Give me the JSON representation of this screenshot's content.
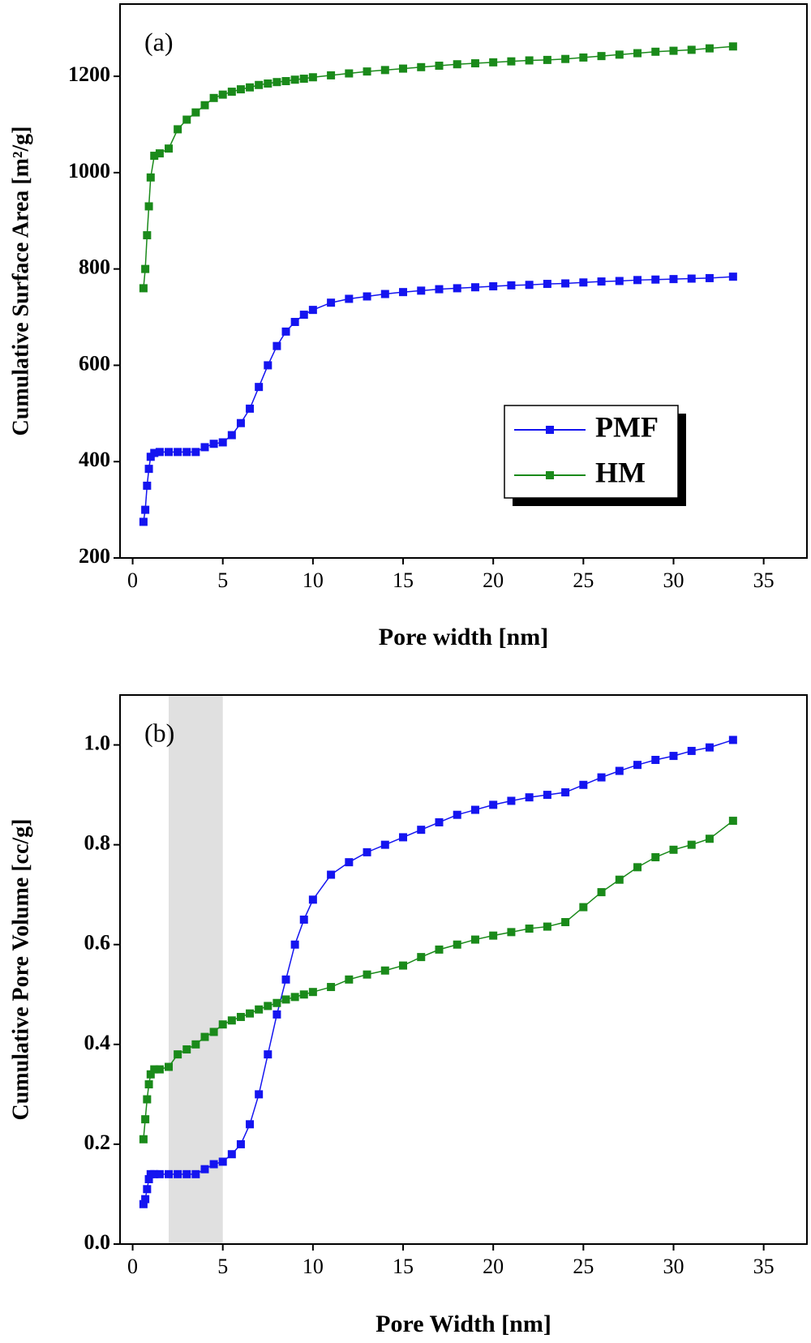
{
  "chart_data": [
    {
      "type": "line",
      "annotation": "(a)",
      "xlabel": "Pore width [nm]",
      "ylabel": "Cumulative Surface Area [m²/g]",
      "x": [
        0.6,
        0.7,
        0.8,
        0.9,
        1.0,
        1.2,
        1.5,
        2,
        2.5,
        3,
        3.5,
        4,
        4.5,
        5,
        5.5,
        6,
        6.5,
        7,
        7.5,
        8,
        8.5,
        9,
        9.5,
        10,
        11,
        12,
        13,
        14,
        15,
        16,
        17,
        18,
        19,
        20,
        21,
        22,
        23,
        24,
        25,
        26,
        27,
        28,
        29,
        30,
        31,
        32,
        33.3
      ],
      "series": [
        {
          "name": "PMF",
          "color": "#1414f0",
          "values": [
            275,
            300,
            350,
            385,
            410,
            418,
            420,
            420,
            420,
            420,
            420,
            430,
            437,
            440,
            455,
            480,
            510,
            555,
            600,
            640,
            670,
            690,
            705,
            715,
            730,
            738,
            743,
            748,
            752,
            755,
            758,
            760,
            762,
            764,
            766,
            767,
            769,
            770,
            772,
            774,
            775,
            777,
            778,
            779,
            780,
            781,
            784
          ]
        },
        {
          "name": "HM",
          "color": "#1a8a1a",
          "values": [
            760,
            800,
            870,
            930,
            990,
            1035,
            1040,
            1050,
            1090,
            1110,
            1125,
            1140,
            1155,
            1162,
            1168,
            1173,
            1177,
            1182,
            1185,
            1188,
            1190,
            1193,
            1195,
            1198,
            1202,
            1206,
            1210,
            1213,
            1216,
            1219,
            1222,
            1225,
            1227,
            1229,
            1231,
            1233,
            1234,
            1236,
            1239,
            1242,
            1245,
            1248,
            1251,
            1253,
            1255,
            1258,
            1262
          ]
        }
      ],
      "xlim": [
        -0.7,
        37.4
      ],
      "ylim": [
        200,
        1350
      ],
      "xticks": [
        0,
        5,
        10,
        15,
        20,
        25,
        30,
        35
      ],
      "yticks": [
        200,
        400,
        600,
        800,
        1000,
        1200
      ],
      "legend": "right"
    },
    {
      "type": "line",
      "annotation": "(b)",
      "xlabel": "Pore Width [nm]",
      "ylabel": "Cumulative Pore Volume [cc/g]",
      "x": [
        0.6,
        0.7,
        0.8,
        0.9,
        1.0,
        1.2,
        1.5,
        2,
        2.5,
        3,
        3.5,
        4,
        4.5,
        5,
        5.5,
        6,
        6.5,
        7,
        7.5,
        8,
        8.5,
        9,
        9.5,
        10,
        11,
        12,
        13,
        14,
        15,
        16,
        17,
        18,
        19,
        20,
        21,
        22,
        23,
        24,
        25,
        26,
        27,
        28,
        29,
        30,
        31,
        32,
        33.3
      ],
      "series": [
        {
          "name": "PMF",
          "color": "#1414f0",
          "values": [
            0.08,
            0.09,
            0.11,
            0.13,
            0.14,
            0.14,
            0.14,
            0.14,
            0.14,
            0.14,
            0.14,
            0.15,
            0.16,
            0.165,
            0.18,
            0.2,
            0.24,
            0.3,
            0.38,
            0.46,
            0.53,
            0.6,
            0.65,
            0.69,
            0.74,
            0.765,
            0.785,
            0.8,
            0.815,
            0.83,
            0.845,
            0.86,
            0.87,
            0.88,
            0.888,
            0.895,
            0.9,
            0.905,
            0.92,
            0.935,
            0.948,
            0.96,
            0.97,
            0.978,
            0.988,
            0.995,
            1.01
          ]
        },
        {
          "name": "HM",
          "color": "#1a8a1a",
          "values": [
            0.21,
            0.25,
            0.29,
            0.32,
            0.34,
            0.35,
            0.35,
            0.355,
            0.38,
            0.39,
            0.4,
            0.415,
            0.425,
            0.44,
            0.448,
            0.455,
            0.462,
            0.47,
            0.477,
            0.483,
            0.49,
            0.495,
            0.5,
            0.505,
            0.515,
            0.53,
            0.54,
            0.548,
            0.558,
            0.575,
            0.59,
            0.6,
            0.61,
            0.618,
            0.625,
            0.632,
            0.636,
            0.645,
            0.675,
            0.705,
            0.73,
            0.755,
            0.775,
            0.79,
            0.8,
            0.812,
            0.848
          ]
        }
      ],
      "xlim": [
        -0.7,
        37.4
      ],
      "ylim": [
        0,
        1.1
      ],
      "xticks": [
        0,
        5,
        10,
        15,
        20,
        25,
        30,
        35
      ],
      "yticks": [
        {
          "value": 0,
          "label": "0.0"
        },
        0.2,
        0.4,
        0.6,
        0.8,
        {
          "value": 1,
          "label": "1.0"
        }
      ],
      "xspan": [
        2,
        5
      ],
      "xspan_color": "#e0e0e0"
    }
  ]
}
